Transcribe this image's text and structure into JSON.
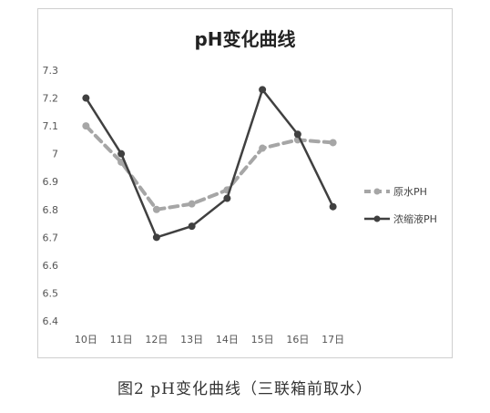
{
  "chart_data": {
    "type": "line",
    "title": "pH变化曲线",
    "categories": [
      "10日",
      "11日",
      "12日",
      "13日",
      "14日",
      "15日",
      "16日",
      "17日"
    ],
    "ylim": [
      6.4,
      7.3
    ],
    "yticks": [
      "6.4",
      "6.5",
      "6.6",
      "6.7",
      "6.8",
      "6.9",
      "7",
      "7.1",
      "7.2",
      "7.3"
    ],
    "grid": false,
    "legend_position": "right",
    "series": [
      {
        "name": "原水PH",
        "values": [
          7.1,
          6.97,
          6.8,
          6.82,
          6.87,
          7.02,
          7.05,
          7.04
        ],
        "color": "#a6a6a6",
        "style": "dashed"
      },
      {
        "name": "浓缩液PH",
        "values": [
          7.2,
          7.0,
          6.7,
          6.74,
          6.84,
          7.23,
          7.07,
          6.81
        ],
        "color": "#404040",
        "style": "solid"
      }
    ]
  },
  "caption": "图2 pH变化曲线（三联箱前取水）"
}
